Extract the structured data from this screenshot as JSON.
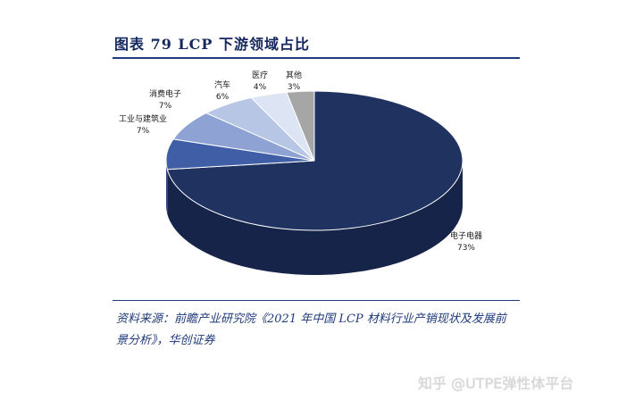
{
  "title": "图表 79   LCP 下游领域占比",
  "source": "资料来源：前瞻产业研究院《2021 年中国 LCP 材料行业产销现状及发展前景分析》，华创证券",
  "watermark": "知乎 @UTPE弹性体平台",
  "chart_data": {
    "type": "pie",
    "style": "3d",
    "slices": [
      {
        "label": "电子电器",
        "value": 73,
        "value_text": "73%",
        "color": "#1f3260",
        "side": "#16244a"
      },
      {
        "label": "工业与建筑业",
        "value": 7,
        "value_text": "7%",
        "color": "#3f5ea6",
        "side": "#2f4682"
      },
      {
        "label": "消费电子",
        "value": 7,
        "value_text": "7%",
        "color": "#8ea3d4",
        "side": "#6f83b8"
      },
      {
        "label": "汽车",
        "value": 6,
        "value_text": "6%",
        "color": "#b8c6e6",
        "side": "#97a7cc"
      },
      {
        "label": "医疗",
        "value": 4,
        "value_text": "4%",
        "color": "#dde4f3",
        "side": "#bcc6dd"
      },
      {
        "label": "其他",
        "value": 3,
        "value_text": "3%",
        "color": "#a6a6a6",
        "side": "#858585"
      }
    ]
  }
}
